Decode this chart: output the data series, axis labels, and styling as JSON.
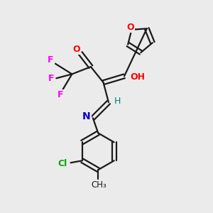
{
  "background_color": "#ebebeb",
  "bond_color": "#1a1a1a",
  "atom_colors": {
    "O": "#ff0000",
    "F": "#ff00ff",
    "N": "#0000cd",
    "Cl": "#00aa00",
    "H": "#008080",
    "C": "#1a1a1a"
  },
  "figsize": [
    3.0,
    3.0
  ],
  "dpi": 100
}
